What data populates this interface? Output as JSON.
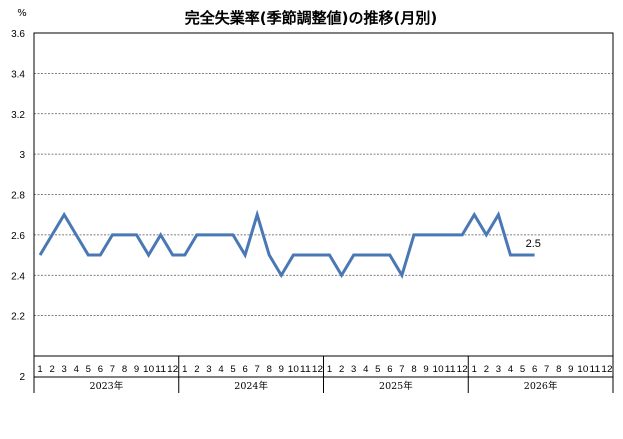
{
  "chart_data": {
    "type": "line",
    "title": "完全失業率(季節調整値)の推移(月別)",
    "unit_label": "%",
    "ylim": [
      2,
      3.6
    ],
    "y_ticks": [
      "2",
      "2.2",
      "2.4",
      "2.6",
      "2.8",
      "3",
      "3.2",
      "3.4",
      "3.6"
    ],
    "grid": true,
    "years": [
      "2023年",
      "2024年",
      "2025年",
      "2026年"
    ],
    "month_labels": [
      "1",
      "2",
      "3",
      "4",
      "5",
      "6",
      "7",
      "8",
      "9",
      "10",
      "11",
      "12"
    ],
    "series": [
      {
        "color": "#4a78b4",
        "values": [
          2.5,
          2.6,
          2.7,
          2.6,
          2.5,
          2.5,
          2.6,
          2.6,
          2.6,
          2.5,
          2.6,
          2.5,
          2.5,
          2.6,
          2.6,
          2.6,
          2.6,
          2.5,
          2.7,
          2.5,
          2.4,
          2.5,
          2.5,
          2.5,
          2.5,
          2.4,
          2.5,
          2.5,
          2.5,
          2.5,
          2.4,
          2.6,
          2.6,
          2.6,
          2.6,
          2.6,
          2.7,
          2.6,
          2.7,
          2.5,
          2.5,
          2.5
        ]
      }
    ],
    "data_label": "2.5"
  }
}
